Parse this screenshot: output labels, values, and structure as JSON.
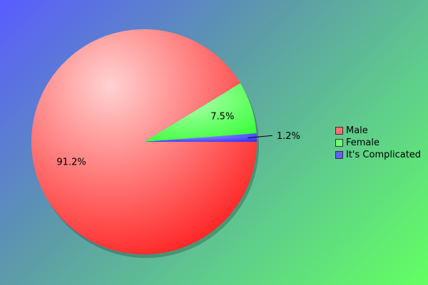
{
  "chart_data": {
    "type": "pie",
    "title": "",
    "slices": [
      {
        "label": "Male",
        "value": 91.2,
        "value_label": "91.2%",
        "color": "#ff2a2a"
      },
      {
        "label": "Female",
        "value": 7.5,
        "value_label": "7.5%",
        "color": "#4dff4d"
      },
      {
        "label": "It's Complicated",
        "value": 1.2,
        "value_label": "1.2%",
        "color": "#4d4dff"
      }
    ],
    "legend_position": "right"
  }
}
